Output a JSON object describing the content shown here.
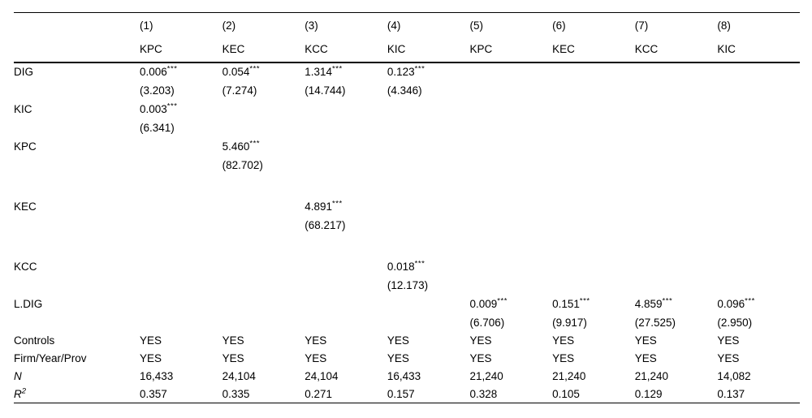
{
  "colors": {
    "text": "#000000",
    "rule": "#000000",
    "background": "#ffffff"
  },
  "table": {
    "header": {
      "numbers": [
        "(1)",
        "(2)",
        "(3)",
        "(4)",
        "(5)",
        "(6)",
        "(7)",
        "(8)"
      ],
      "dep_vars": [
        "KPC",
        "KEC",
        "KCC",
        "KIC",
        "KPC",
        "KEC",
        "KCC",
        "KIC"
      ]
    },
    "groups": [
      {
        "label": "DIG",
        "cells": [
          {
            "coef": "0.006",
            "stars": "***",
            "t": "(3.203)"
          },
          {
            "coef": "0.054",
            "stars": "***",
            "t": "(7.274)"
          },
          {
            "coef": "1.314",
            "stars": "***",
            "t": "(14.744)"
          },
          {
            "coef": "0.123",
            "stars": "***",
            "t": "(4.346)"
          },
          null,
          null,
          null,
          null
        ]
      },
      {
        "label": "KIC",
        "cells": [
          {
            "coef": "0.003",
            "stars": "***",
            "t": "(6.341)"
          },
          null,
          null,
          null,
          null,
          null,
          null,
          null
        ]
      },
      {
        "label": "KPC",
        "cells": [
          null,
          {
            "coef": "5.460",
            "stars": "***",
            "t": "(82.702)"
          },
          null,
          null,
          null,
          null,
          null,
          null
        ],
        "spacer_after": true
      },
      {
        "label": "KEC",
        "cells": [
          null,
          null,
          {
            "coef": "4.891",
            "stars": "***",
            "t": "(68.217)"
          },
          null,
          null,
          null,
          null,
          null
        ],
        "spacer_after": true
      },
      {
        "label": "KCC",
        "cells": [
          null,
          null,
          null,
          {
            "coef": "0.018",
            "stars": "***",
            "t": "(12.173)"
          },
          null,
          null,
          null,
          null
        ]
      },
      {
        "label": "L.DIG",
        "cells": [
          null,
          null,
          null,
          null,
          {
            "coef": "0.009",
            "stars": "***",
            "t": "(6.706)"
          },
          {
            "coef": "0.151",
            "stars": "***",
            "t": "(9.917)"
          },
          {
            "coef": "4.859",
            "stars": "***",
            "t": "(27.525)"
          },
          {
            "coef": "0.096",
            "stars": "***",
            "t": "(2.950)"
          }
        ]
      }
    ],
    "footer": [
      {
        "label": "Controls",
        "values": [
          "YES",
          "YES",
          "YES",
          "YES",
          "YES",
          "YES",
          "YES",
          "YES"
        ]
      },
      {
        "label": "Firm/Year/Prov",
        "values": [
          "YES",
          "YES",
          "YES",
          "YES",
          "YES",
          "YES",
          "YES",
          "YES"
        ]
      },
      {
        "label": "N",
        "italic": true,
        "values": [
          "16,433",
          "24,104",
          "24,104",
          "16,433",
          "21,240",
          "21,240",
          "21,240",
          "14,082"
        ]
      },
      {
        "label": "R",
        "label_sup": "2",
        "italic": true,
        "values": [
          "0.357",
          "0.335",
          "0.271",
          "0.157",
          "0.328",
          "0.105",
          "0.129",
          "0.137"
        ]
      }
    ]
  }
}
